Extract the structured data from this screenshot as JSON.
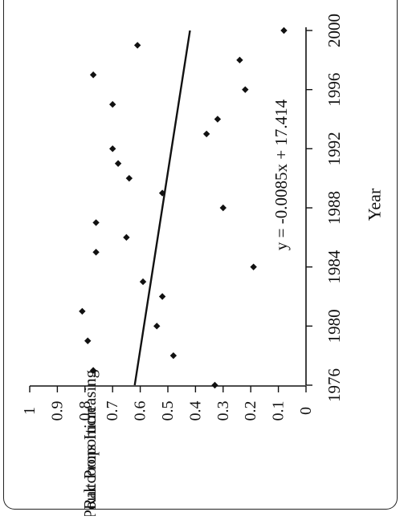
{
  "chart_data": {
    "type": "scatter",
    "orientation": "rotated-90-clockwise",
    "xlabel": "Year",
    "ylabel_lines": [
      "Poult Proportion",
      "Raccoons Increasing"
    ],
    "equation": "y = -0.0085x + 17.414",
    "xlim": [
      1976,
      2000
    ],
    "ylim": [
      0,
      1
    ],
    "x_ticks": [
      1976,
      1980,
      1984,
      1988,
      1992,
      1996,
      2000
    ],
    "x_tick_labels": [
      "1976",
      "1980",
      "1984",
      "1988",
      "1992",
      "1996",
      "2000"
    ],
    "y_ticks": [
      0,
      0.1,
      0.2,
      0.3,
      0.4,
      0.5,
      0.6,
      0.7,
      0.8,
      0.9,
      1
    ],
    "y_tick_labels": [
      "0",
      "0.1",
      "0.2",
      "0.3",
      "0.4",
      "0.5",
      "0.6",
      "0.7",
      "0.8",
      "0.9",
      "1"
    ],
    "points": [
      {
        "x": 1976,
        "y": 0.33
      },
      {
        "x": 1977,
        "y": 0.77
      },
      {
        "x": 1978,
        "y": 0.48
      },
      {
        "x": 1979,
        "y": 0.79
      },
      {
        "x": 1980,
        "y": 0.54
      },
      {
        "x": 1981,
        "y": 0.81
      },
      {
        "x": 1982,
        "y": 0.52
      },
      {
        "x": 1983,
        "y": 0.59
      },
      {
        "x": 1984,
        "y": 0.19
      },
      {
        "x": 1985,
        "y": 0.76
      },
      {
        "x": 1986,
        "y": 0.65
      },
      {
        "x": 1987,
        "y": 0.76
      },
      {
        "x": 1988,
        "y": 0.3
      },
      {
        "x": 1989,
        "y": 0.52
      },
      {
        "x": 1990,
        "y": 0.64
      },
      {
        "x": 1991,
        "y": 0.68
      },
      {
        "x": 1992,
        "y": 0.7
      },
      {
        "x": 1993,
        "y": 0.36
      },
      {
        "x": 1994,
        "y": 0.32
      },
      {
        "x": 1995,
        "y": 0.7
      },
      {
        "x": 1996,
        "y": 0.22
      },
      {
        "x": 1997,
        "y": 0.77
      },
      {
        "x": 1998,
        "y": 0.24
      },
      {
        "x": 1999,
        "y": 0.61
      },
      {
        "x": 2000,
        "y": 0.08
      }
    ],
    "trendline": {
      "x": [
        1976,
        2000
      ],
      "y": [
        0.62,
        0.42
      ]
    },
    "grid": false
  }
}
